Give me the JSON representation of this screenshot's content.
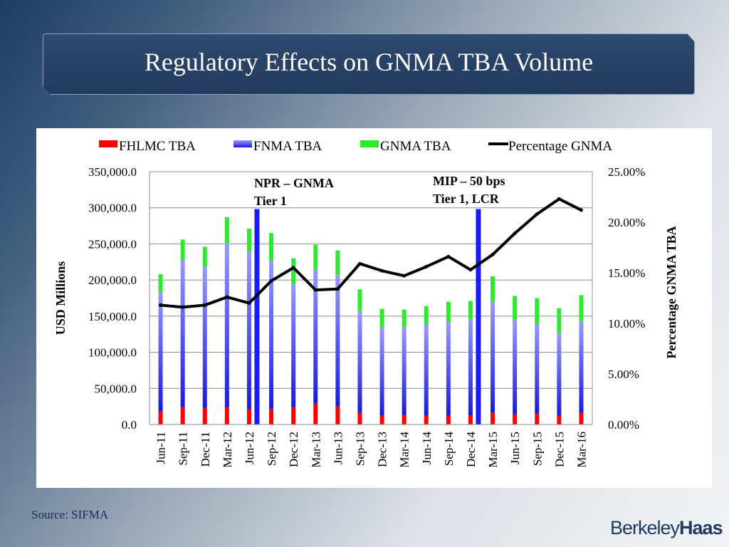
{
  "title": "Regulatory Effects on GNMA TBA Volume",
  "source": "Source: SIFMA",
  "logo": {
    "part1": "Berkeley",
    "part2": "Haas"
  },
  "colors": {
    "fhlmc": "#ff0000",
    "fnma_top": "#9999ff",
    "fnma_bottom": "#1a1adb",
    "gnma": "#2eea2e",
    "line": "#000000",
    "marker": "#1a1aff",
    "grid": "#8c8c8c"
  },
  "chart_data": {
    "type": "bar",
    "stacked": true,
    "title": "",
    "ylabel": "USD Millions",
    "y2label": "Percentage GNMA TBA",
    "ylim": [
      0,
      350000
    ],
    "y2lim": [
      0,
      25
    ],
    "yticks": [
      "0.0",
      "50,000.0",
      "100,000.0",
      "150,000.0",
      "200,000.0",
      "250,000.0",
      "300,000.0",
      "350,000.0"
    ],
    "y2ticks": [
      "0.00%",
      "5.00%",
      "10.00%",
      "15.00%",
      "20.00%",
      "25.00%"
    ],
    "categories": [
      "Jun-11",
      "Sep-11",
      "Dec-11",
      "Mar-12",
      "Jun-12",
      "Sep-12",
      "Dec-12",
      "Mar-13",
      "Jun-13",
      "Sep-13",
      "Dec-13",
      "Mar-14",
      "Jun-14",
      "Sep-14",
      "Dec-14",
      "Mar-15",
      "Jun-15",
      "Sep-15",
      "Dec-15",
      "Mar-16"
    ],
    "series": [
      {
        "name": "FHLMC TBA",
        "axis": "left",
        "values": [
          18000,
          24000,
          23000,
          24000,
          21000,
          21000,
          24000,
          29000,
          25000,
          16000,
          12000,
          13000,
          12000,
          12000,
          12000,
          16000,
          14000,
          15000,
          12000,
          16000
        ]
      },
      {
        "name": "FNMA TBA",
        "axis": "left",
        "values": [
          166000,
          204000,
          195000,
          227000,
          218000,
          206000,
          170000,
          186000,
          182000,
          141000,
          123000,
          122000,
          127000,
          130000,
          134000,
          154000,
          131000,
          124000,
          114000,
          127000
        ]
      },
      {
        "name": "GNMA TBA",
        "axis": "left",
        "values": [
          24000,
          28000,
          28000,
          36000,
          32000,
          38000,
          36000,
          34000,
          34000,
          30000,
          25000,
          24000,
          25000,
          28000,
          25000,
          35000,
          33000,
          36000,
          35000,
          36000
        ]
      },
      {
        "name": "Percentage GNMA",
        "axis": "right",
        "type": "line",
        "values": [
          11.8,
          11.6,
          11.8,
          12.6,
          12.0,
          14.2,
          15.5,
          13.3,
          13.4,
          15.9,
          15.2,
          14.7,
          15.6,
          16.6,
          15.3,
          16.8,
          18.9,
          20.8,
          22.3,
          21.2
        ]
      }
    ],
    "legend": [
      "FHLMC TBA",
      "FNMA TBA",
      "GNMA TBA",
      "Percentage GNMA"
    ],
    "legend_position": "top",
    "annotations": [
      {
        "after_category": "Jun-12",
        "lines": [
          "NPR – GNMA",
          "Tier 1"
        ]
      },
      {
        "after_category": "Dec-14",
        "lines": [
          "MIP – 50 bps",
          "Tier 1, LCR"
        ]
      }
    ]
  }
}
